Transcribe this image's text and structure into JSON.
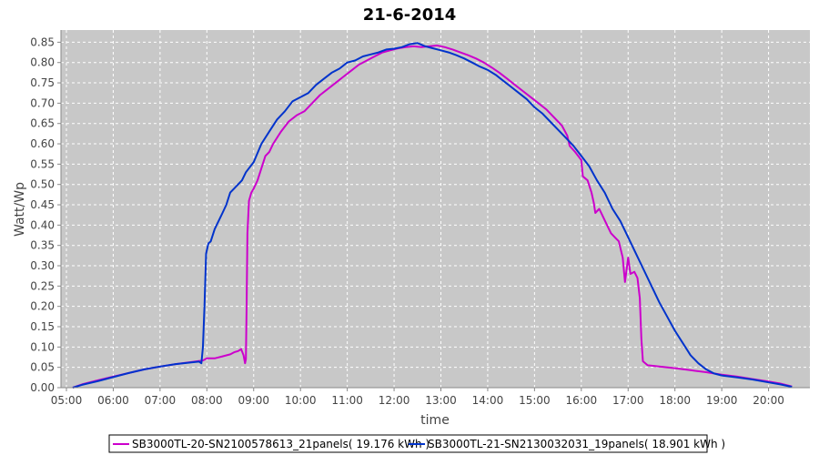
{
  "chart_data": {
    "type": "line",
    "title": "21-6-2014",
    "xlabel": "time",
    "ylabel": "Watt/Wp",
    "xlim": [
      "04:53",
      "20:53"
    ],
    "ylim": [
      0,
      0.88
    ],
    "x_ticks": [
      "05:00",
      "06:00",
      "07:00",
      "08:00",
      "09:00",
      "10:00",
      "11:00",
      "12:00",
      "13:00",
      "14:00",
      "15:00",
      "16:00",
      "17:00",
      "18:00",
      "19:00",
      "20:00"
    ],
    "y_ticks": [
      "0.00",
      "0.05",
      "0.10",
      "0.15",
      "0.20",
      "0.25",
      "0.30",
      "0.35",
      "0.40",
      "0.45",
      "0.50",
      "0.55",
      "0.60",
      "0.65",
      "0.70",
      "0.75",
      "0.80",
      "0.85"
    ],
    "grid": true,
    "legend_position": "bottom",
    "plot_background": "#c8c8c8",
    "series": [
      {
        "name": "SB3000TL-20-SN2100578613_21panels( 19.176 kWh )",
        "color": "#cc00cc",
        "points": [
          [
            "05:08",
            0.0
          ],
          [
            "05:20",
            0.008
          ],
          [
            "05:40",
            0.018
          ],
          [
            "06:00",
            0.027
          ],
          [
            "06:20",
            0.036
          ],
          [
            "06:40",
            0.045
          ],
          [
            "07:00",
            0.052
          ],
          [
            "07:20",
            0.058
          ],
          [
            "07:40",
            0.063
          ],
          [
            "07:55",
            0.067
          ],
          [
            "08:00",
            0.072
          ],
          [
            "08:10",
            0.072
          ],
          [
            "08:20",
            0.077
          ],
          [
            "08:30",
            0.082
          ],
          [
            "08:35",
            0.087
          ],
          [
            "08:40",
            0.09
          ],
          [
            "08:44",
            0.095
          ],
          [
            "08:47",
            0.08
          ],
          [
            "08:49",
            0.06
          ],
          [
            "08:50",
            0.07
          ],
          [
            "08:51",
            0.2
          ],
          [
            "08:52",
            0.38
          ],
          [
            "08:54",
            0.46
          ],
          [
            "08:57",
            0.48
          ],
          [
            "09:00",
            0.49
          ],
          [
            "09:05",
            0.51
          ],
          [
            "09:10",
            0.54
          ],
          [
            "09:15",
            0.57
          ],
          [
            "09:20",
            0.58
          ],
          [
            "09:25",
            0.6
          ],
          [
            "09:35",
            0.63
          ],
          [
            "09:45",
            0.655
          ],
          [
            "09:55",
            0.67
          ],
          [
            "10:05",
            0.68
          ],
          [
            "10:15",
            0.7
          ],
          [
            "10:25",
            0.72
          ],
          [
            "10:35",
            0.735
          ],
          [
            "10:45",
            0.75
          ],
          [
            "10:55",
            0.765
          ],
          [
            "11:05",
            0.78
          ],
          [
            "11:15",
            0.795
          ],
          [
            "11:25",
            0.805
          ],
          [
            "11:35",
            0.815
          ],
          [
            "11:45",
            0.825
          ],
          [
            "11:55",
            0.83
          ],
          [
            "12:05",
            0.835
          ],
          [
            "12:15",
            0.838
          ],
          [
            "12:25",
            0.84
          ],
          [
            "12:35",
            0.838
          ],
          [
            "12:45",
            0.84
          ],
          [
            "12:55",
            0.842
          ],
          [
            "13:05",
            0.838
          ],
          [
            "13:15",
            0.832
          ],
          [
            "13:25",
            0.825
          ],
          [
            "13:35",
            0.818
          ],
          [
            "13:45",
            0.81
          ],
          [
            "13:55",
            0.8
          ],
          [
            "14:05",
            0.788
          ],
          [
            "14:15",
            0.775
          ],
          [
            "14:25",
            0.76
          ],
          [
            "14:35",
            0.745
          ],
          [
            "14:45",
            0.73
          ],
          [
            "14:55",
            0.715
          ],
          [
            "15:05",
            0.7
          ],
          [
            "15:15",
            0.685
          ],
          [
            "15:25",
            0.665
          ],
          [
            "15:35",
            0.645
          ],
          [
            "15:42",
            0.62
          ],
          [
            "15:45",
            0.595
          ],
          [
            "15:52",
            0.58
          ],
          [
            "16:00",
            0.56
          ],
          [
            "16:02",
            0.52
          ],
          [
            "16:08",
            0.51
          ],
          [
            "16:13",
            0.48
          ],
          [
            "16:16",
            0.455
          ],
          [
            "16:18",
            0.43
          ],
          [
            "16:23",
            0.44
          ],
          [
            "16:28",
            0.42
          ],
          [
            "16:33",
            0.4
          ],
          [
            "16:38",
            0.38
          ],
          [
            "16:43",
            0.37
          ],
          [
            "16:48",
            0.36
          ],
          [
            "16:53",
            0.32
          ],
          [
            "16:56",
            0.26
          ],
          [
            "17:00",
            0.32
          ],
          [
            "17:03",
            0.28
          ],
          [
            "17:08",
            0.285
          ],
          [
            "17:12",
            0.27
          ],
          [
            "17:15",
            0.22
          ],
          [
            "17:17",
            0.12
          ],
          [
            "17:19",
            0.065
          ],
          [
            "17:25",
            0.055
          ],
          [
            "17:40",
            0.052
          ],
          [
            "18:00",
            0.048
          ],
          [
            "18:20",
            0.043
          ],
          [
            "18:40",
            0.038
          ],
          [
            "19:00",
            0.032
          ],
          [
            "19:20",
            0.027
          ],
          [
            "19:40",
            0.021
          ],
          [
            "20:00",
            0.015
          ],
          [
            "20:15",
            0.01
          ],
          [
            "20:30",
            0.003
          ]
        ]
      },
      {
        "name": "SB3000TL-21-SN2130032031_19panels( 18.901 kWh )",
        "color": "#0033cc",
        "points": [
          [
            "05:08",
            0.0
          ],
          [
            "05:20",
            0.007
          ],
          [
            "05:40",
            0.016
          ],
          [
            "06:00",
            0.026
          ],
          [
            "06:20",
            0.036
          ],
          [
            "06:40",
            0.045
          ],
          [
            "07:00",
            0.052
          ],
          [
            "07:20",
            0.058
          ],
          [
            "07:40",
            0.062
          ],
          [
            "07:50",
            0.064
          ],
          [
            "07:53",
            0.06
          ],
          [
            "07:55",
            0.1
          ],
          [
            "07:57",
            0.2
          ],
          [
            "07:59",
            0.33
          ],
          [
            "08:02",
            0.355
          ],
          [
            "08:05",
            0.36
          ],
          [
            "08:10",
            0.39
          ],
          [
            "08:15",
            0.41
          ],
          [
            "08:20",
            0.43
          ],
          [
            "08:25",
            0.45
          ],
          [
            "08:30",
            0.48
          ],
          [
            "08:35",
            0.49
          ],
          [
            "08:40",
            0.5
          ],
          [
            "08:45",
            0.51
          ],
          [
            "08:50",
            0.53
          ],
          [
            "09:00",
            0.555
          ],
          [
            "09:10",
            0.6
          ],
          [
            "09:20",
            0.63
          ],
          [
            "09:30",
            0.66
          ],
          [
            "09:40",
            0.68
          ],
          [
            "09:50",
            0.705
          ],
          [
            "10:00",
            0.715
          ],
          [
            "10:10",
            0.725
          ],
          [
            "10:20",
            0.745
          ],
          [
            "10:30",
            0.76
          ],
          [
            "10:40",
            0.775
          ],
          [
            "10:50",
            0.785
          ],
          [
            "11:00",
            0.8
          ],
          [
            "11:10",
            0.805
          ],
          [
            "11:20",
            0.815
          ],
          [
            "11:30",
            0.82
          ],
          [
            "11:40",
            0.825
          ],
          [
            "11:50",
            0.832
          ],
          [
            "12:00",
            0.834
          ],
          [
            "12:10",
            0.838
          ],
          [
            "12:20",
            0.845
          ],
          [
            "12:30",
            0.848
          ],
          [
            "12:40",
            0.84
          ],
          [
            "12:50",
            0.835
          ],
          [
            "13:00",
            0.83
          ],
          [
            "13:10",
            0.825
          ],
          [
            "13:20",
            0.818
          ],
          [
            "13:30",
            0.81
          ],
          [
            "13:40",
            0.8
          ],
          [
            "13:50",
            0.79
          ],
          [
            "14:00",
            0.782
          ],
          [
            "14:10",
            0.77
          ],
          [
            "14:20",
            0.755
          ],
          [
            "14:30",
            0.74
          ],
          [
            "14:40",
            0.725
          ],
          [
            "14:50",
            0.71
          ],
          [
            "15:00",
            0.69
          ],
          [
            "15:10",
            0.675
          ],
          [
            "15:20",
            0.655
          ],
          [
            "15:30",
            0.635
          ],
          [
            "15:40",
            0.615
          ],
          [
            "15:50",
            0.595
          ],
          [
            "16:00",
            0.57
          ],
          [
            "16:10",
            0.545
          ],
          [
            "16:20",
            0.51
          ],
          [
            "16:30",
            0.48
          ],
          [
            "16:40",
            0.44
          ],
          [
            "16:50",
            0.41
          ],
          [
            "17:00",
            0.37
          ],
          [
            "17:10",
            0.33
          ],
          [
            "17:20",
            0.29
          ],
          [
            "17:30",
            0.25
          ],
          [
            "17:40",
            0.21
          ],
          [
            "17:50",
            0.175
          ],
          [
            "18:00",
            0.14
          ],
          [
            "18:10",
            0.11
          ],
          [
            "18:20",
            0.08
          ],
          [
            "18:30",
            0.06
          ],
          [
            "18:40",
            0.045
          ],
          [
            "18:50",
            0.035
          ],
          [
            "19:00",
            0.03
          ],
          [
            "19:20",
            0.025
          ],
          [
            "19:40",
            0.02
          ],
          [
            "20:00",
            0.013
          ],
          [
            "20:15",
            0.008
          ],
          [
            "20:30",
            0.002
          ]
        ]
      }
    ]
  }
}
